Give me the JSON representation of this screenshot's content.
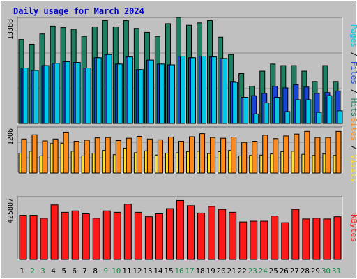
{
  "chart_data": [
    {
      "type": "bar",
      "title": "Daily usage for March 2024",
      "categories": [
        "1",
        "2",
        "3",
        "4",
        "5",
        "6",
        "7",
        "8",
        "9",
        "10",
        "11",
        "12",
        "13",
        "14",
        "15",
        "16",
        "17",
        "18",
        "19",
        "20",
        "21",
        "22",
        "23",
        "24",
        "25",
        "26",
        "27",
        "28",
        "29",
        "30",
        "31"
      ],
      "weekend_days": [
        "2",
        "3",
        "9",
        "10",
        "16",
        "17",
        "23",
        "24",
        "30",
        "31"
      ],
      "panels": [
        {
          "id": "top",
          "scale_label": "13388",
          "ymax": 13388,
          "axis_legend": [
            {
              "text": "Pages",
              "color": "#00c8e8"
            },
            {
              "text": " / ",
              "color": "#000000"
            },
            {
              "text": "Files",
              "color": "#1a44d8"
            },
            {
              "text": " / ",
              "color": "#000000"
            },
            {
              "text": "Hits",
              "color": "#1e7f63"
            }
          ],
          "series": [
            {
              "name": "Hits",
              "color": "#1e7f63",
              "values": [
                10600,
                10000,
                11300,
                12300,
                12100,
                11900,
                11000,
                12200,
                13000,
                12200,
                13000,
                12000,
                11500,
                11000,
                12600,
                13388,
                12400,
                12700,
                13000,
                10900,
                8700,
                6300,
                4700,
                6600,
                7500,
                7300,
                7300,
                6600,
                5300,
                7300,
                5300
              ]
            },
            {
              "name": "Files",
              "color": "#1a44d8",
              "values": [
                7000,
                6700,
                7300,
                7600,
                7800,
                7700,
                7000,
                8300,
                8700,
                7500,
                8400,
                6800,
                8000,
                7500,
                7400,
                8500,
                8300,
                8500,
                8400,
                8200,
                5300,
                3300,
                3500,
                3800,
                4700,
                4500,
                4900,
                4600,
                3800,
                3900,
                4100
              ]
            },
            {
              "name": "Pages",
              "color": "#00c8e8",
              "values": [
                7000,
                6700,
                7300,
                7600,
                7800,
                7700,
                7000,
                8300,
                8700,
                7500,
                8400,
                6800,
                8000,
                7500,
                7400,
                8500,
                8300,
                8500,
                8400,
                8200,
                5200,
                3300,
                1200,
                2600,
                3300,
                1500,
                3000,
                3000,
                1400,
                3500,
                1600
              ]
            }
          ]
        },
        {
          "id": "middle",
          "scale_label": "1206",
          "ymax": 1206,
          "axis_legend": [
            {
              "text": "Sites",
              "color": "#ff8a1c"
            },
            {
              "text": " / ",
              "color": "#000000"
            },
            {
              "text": "Visits",
              "color": "#ffe02a"
            }
          ],
          "series": [
            {
              "name": "Visits",
              "color": "#ffe02a",
              "values": [
                520,
                570,
                450,
                770,
                780,
                570,
                450,
                520,
                590,
                480,
                650,
                530,
                580,
                470,
                520,
                530,
                560,
                570,
                510,
                560,
                590,
                450,
                460,
                470,
                500,
                560,
                570,
                490,
                460,
                500,
                460
              ]
            },
            {
              "name": "Sites",
              "color": "#ff8a1c",
              "values": [
                890,
                1000,
                840,
                890,
                1070,
                830,
                860,
                920,
                930,
                850,
                910,
                960,
                890,
                870,
                940,
                830,
                950,
                1030,
                930,
                910,
                940,
                800,
                830,
                990,
                900,
                970,
                1020,
                1090,
                930,
                930,
                1090
              ]
            }
          ]
        },
        {
          "id": "bottom",
          "scale_label": "425807",
          "ymax": 425807,
          "axis_legend": [
            {
              "text": "KBytes",
              "color": "#ff1a1a"
            }
          ],
          "series": [
            {
              "name": "KBytes",
              "color": "#ff1a1a",
              "values": [
                300000,
                300000,
                280000,
                370000,
                320000,
                330000,
                310000,
                280000,
                330000,
                320000,
                375000,
                320000,
                290000,
                310000,
                345000,
                400000,
                365000,
                315000,
                360000,
                340000,
                320000,
                255000,
                260000,
                260000,
                295000,
                250000,
                340000,
                275000,
                280000,
                275000,
                290000
              ]
            }
          ]
        }
      ]
    }
  ]
}
